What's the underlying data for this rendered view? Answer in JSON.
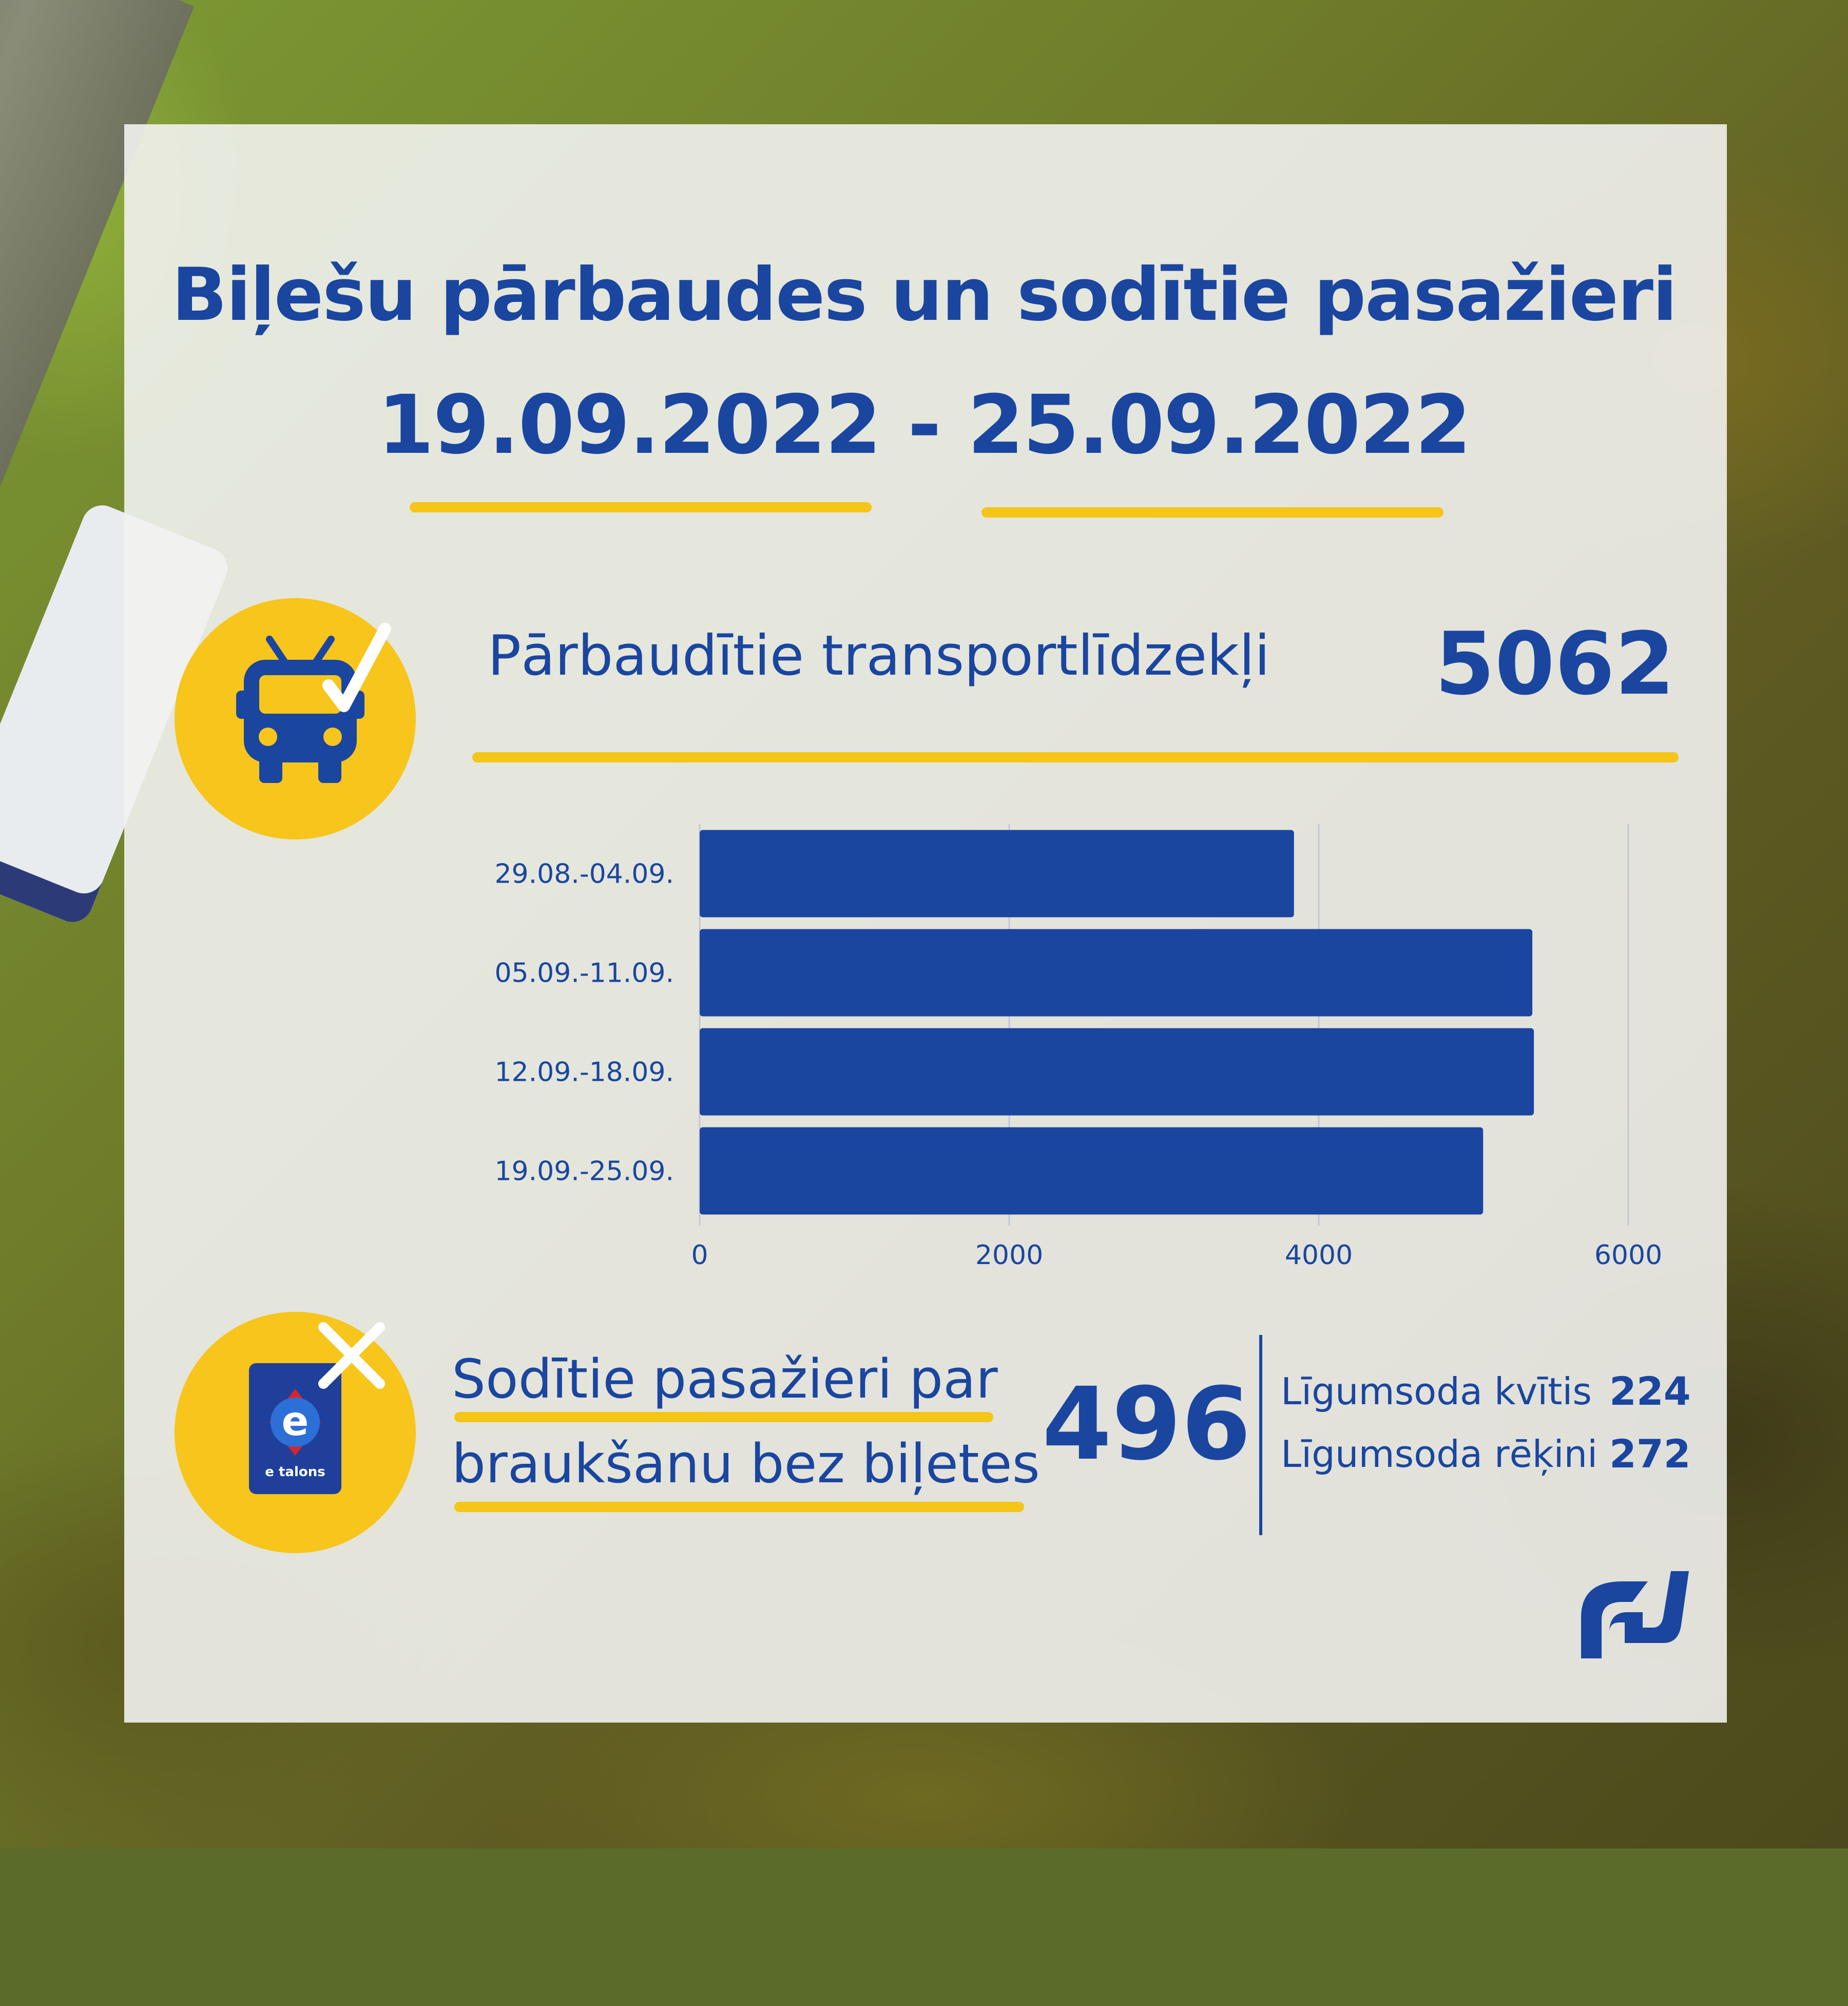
{
  "header": {
    "title": "Biļešu pārbaudes un sodītie pasažieri",
    "date_range": "19.09.2022 - 25.09.2022"
  },
  "inspected_vehicles": {
    "label": "Pārbaudītie transportlīdzekļi",
    "value": "5062",
    "icon": "trolleybus-check-icon"
  },
  "fined_passengers": {
    "label_line1": "Sodītie pasažieri par",
    "label_line2": "braukšanu bez biļetes",
    "value": "496",
    "icon": "etalons-card-cross-icon",
    "card_label": "e talons",
    "breakdown": [
      {
        "label": "Līgumsoda kvītis",
        "value": "224"
      },
      {
        "label": "Līgumsoda rēķini",
        "value": "272"
      }
    ]
  },
  "colors": {
    "primary_blue": "#1a46a0",
    "bar_blue": "#1a46a0",
    "accent_yellow": "#f7c51b",
    "panel": "#f2f2f0"
  },
  "chart_data": {
    "type": "bar",
    "orientation": "horizontal",
    "categories": [
      "29.08.-04.09.",
      "05.09.-11.09.",
      "12.09.-18.09.",
      "19.09.-25.09."
    ],
    "values": [
      3840,
      5380,
      5390,
      5062
    ],
    "xlim": [
      0,
      6000
    ],
    "xticks": [
      0,
      2000,
      4000,
      6000
    ],
    "grid": true,
    "legend": "none"
  }
}
